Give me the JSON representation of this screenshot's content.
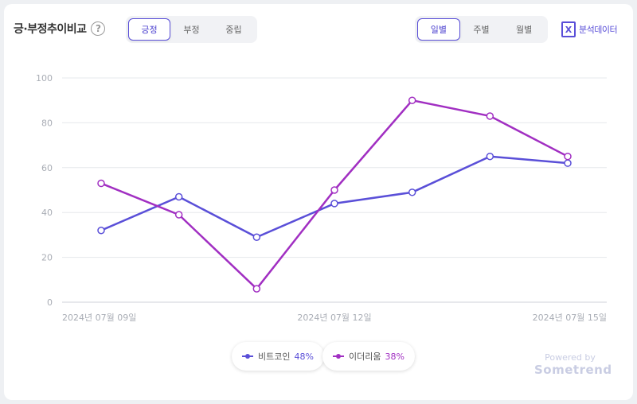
{
  "header": {
    "title": "긍·부정추이비교",
    "help_icon": "question-circle-icon",
    "sentiment_tabs": [
      "긍정",
      "부정",
      "중립"
    ],
    "sentiment_active": "긍정",
    "period_tabs": [
      "일별",
      "주별",
      "월별"
    ],
    "period_active": "일별",
    "export_icon": "excel-icon",
    "export_label": "분석데이터"
  },
  "chart_data": {
    "type": "line",
    "x_tick_labels": [
      "2024년 07월 09일",
      "2024년 07월 12일",
      "2024년 07월 15일"
    ],
    "ylim": [
      0,
      100
    ],
    "y_ticks": [
      "100",
      "80",
      "60",
      "40",
      "20",
      "0"
    ],
    "grid": true,
    "series": [
      {
        "name": "비트코인",
        "share": "48%",
        "color": "#5a4fd8",
        "values": [
          32,
          47,
          29,
          44,
          49,
          65,
          62
        ]
      },
      {
        "name": "이더리움",
        "share": "38%",
        "color": "#a12fc2",
        "values": [
          53,
          39,
          6,
          50,
          90,
          83,
          65
        ]
      }
    ]
  },
  "branding": {
    "powered_by": "Powered by",
    "brand": "Sometrend"
  }
}
